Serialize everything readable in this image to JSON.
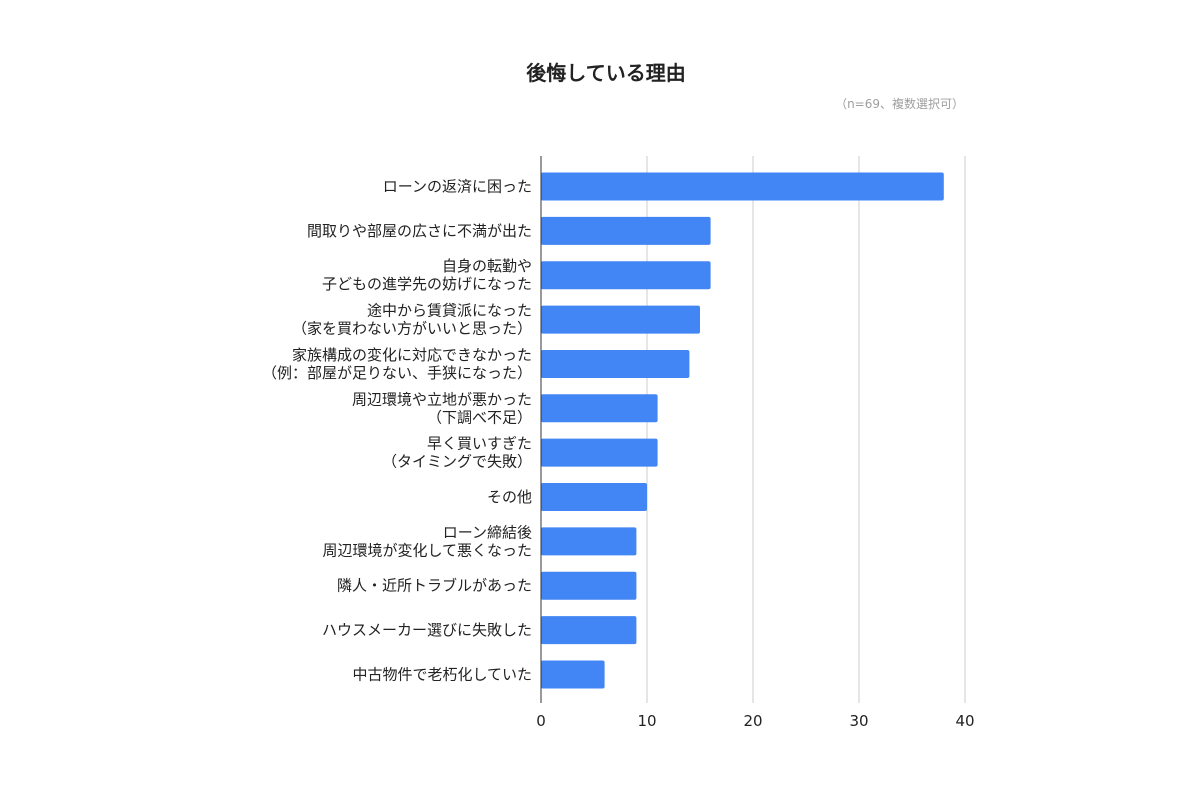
{
  "chart_data": {
    "type": "bar",
    "orientation": "horizontal",
    "title": "後悔している理由",
    "subtitle": "（n=69、複数選択可）",
    "categories": [
      [
        "ローンの返済に困った"
      ],
      [
        "間取りや部屋の広さに不満が出た"
      ],
      [
        "自身の転勤や",
        "子どもの進学先の妨げになった"
      ],
      [
        "途中から賃貸派になった",
        "（家を買わない方がいいと思った）"
      ],
      [
        "家族構成の変化に対応できなかった",
        "（例：部屋が足りない、手狭になった）"
      ],
      [
        "周辺環境や立地が悪かった",
        "（下調べ不足）"
      ],
      [
        "早く買いすぎた",
        "（タイミングで失敗）"
      ],
      [
        "その他"
      ],
      [
        "ローン締結後",
        "周辺環境が変化して悪くなった"
      ],
      [
        "隣人・近所トラブルがあった"
      ],
      [
        "ハウスメーカー選びに失敗した"
      ],
      [
        "中古物件で老朽化していた"
      ]
    ],
    "values": [
      38,
      16,
      16,
      15,
      14,
      11,
      11,
      10,
      9,
      9,
      9,
      6
    ],
    "xlim": [
      0,
      40
    ],
    "xticks": [
      "0",
      "10",
      "20",
      "30",
      "40"
    ],
    "grid": true,
    "bar_color": "#4285f4",
    "grid_color": "#cccccc",
    "axis_color": "#333333"
  }
}
